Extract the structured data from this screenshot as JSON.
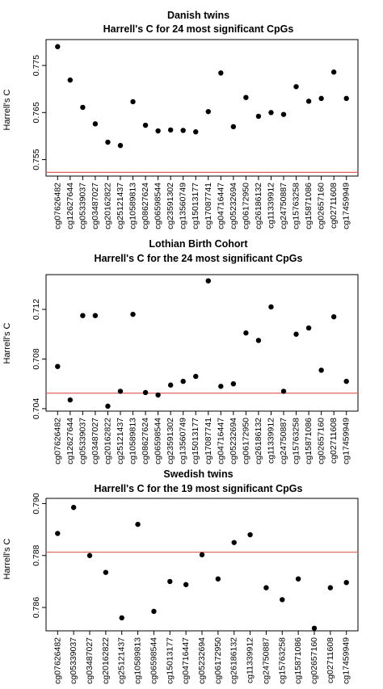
{
  "chart_data": [
    {
      "type": "scatter",
      "title": "Danish twins",
      "subtitle": "Harrell's C for 24 most significant CpGs",
      "ylabel": "Harrell's C",
      "xlabel": "",
      "ylim": [
        0.7515,
        0.7805
      ],
      "yticks": [
        0.755,
        0.765,
        0.775
      ],
      "ytick_labels": [
        "0.755",
        "0.765",
        "0.775"
      ],
      "reference_line": 0.7523,
      "reference_color": "#e0605a",
      "point_color": "#000000",
      "categories": [
        "cg07626482",
        "cg12627644",
        "cg05339037",
        "cg03487027",
        "cg20162822",
        "cg25121437",
        "cg10589813",
        "cg08627624",
        "cg06598544",
        "cg23591302",
        "cg13560749",
        "cg15013177",
        "cg17087741",
        "cg04716447",
        "cg05232694",
        "cg06172950",
        "cg26186132",
        "cg11339912",
        "cg24750887",
        "cg15763258",
        "cg15871086",
        "cg02657160",
        "cg02711608",
        "cg17459949"
      ],
      "values": [
        0.779,
        0.7719,
        0.7661,
        0.7626,
        0.7587,
        0.758,
        0.7673,
        0.7623,
        0.7611,
        0.7613,
        0.7612,
        0.7609,
        0.7652,
        0.7734,
        0.762,
        0.7682,
        0.7642,
        0.765,
        0.7646,
        0.7705,
        0.7674,
        0.768,
        0.7736,
        0.768
      ]
    },
    {
      "type": "scatter",
      "title": "Lothian Birth Cohort",
      "subtitle": "Harrell's C for the 24 most significant CpGs",
      "ylabel": "Harrell's C",
      "xlabel": "",
      "ylim": [
        0.7038,
        0.7148
      ],
      "yticks": [
        0.704,
        0.708,
        0.712
      ],
      "ytick_labels": [
        "0.704",
        "0.708",
        "0.712"
      ],
      "reference_line": 0.70525,
      "reference_color": "#e0605a",
      "point_color": "#000000",
      "categories": [
        "cg07626482",
        "cg12627644",
        "cg05339037",
        "cg03487027",
        "cg20162822",
        "cg25121437",
        "cg10589813",
        "cg08627624",
        "cg06598544",
        "cg23591302",
        "cg13560749",
        "cg15013177",
        "cg17087741",
        "cg04716447",
        "cg05232694",
        "cg06172950",
        "cg26186132",
        "cg11339912",
        "cg24750887",
        "cg15763258",
        "cg15871086",
        "cg02657160",
        "cg02711608",
        "cg17459949"
      ],
      "values": [
        0.7074,
        0.7047,
        0.7115,
        0.7115,
        0.7042,
        0.7054,
        0.7116,
        0.7053,
        0.7051,
        0.7059,
        0.7062,
        0.7066,
        0.7143,
        0.7058,
        0.706,
        0.7101,
        0.7095,
        0.7122,
        0.7054,
        0.71,
        0.7105,
        0.7071,
        0.7114,
        0.7062
      ]
    },
    {
      "type": "scatter",
      "title": "Swedish twins",
      "subtitle": "Harrell's C for the 19 most significant CpGs",
      "ylabel": "Harrell's C",
      "xlabel": "",
      "ylim": [
        0.7851,
        0.7902
      ],
      "yticks": [
        0.786,
        0.788,
        0.79
      ],
      "ytick_labels": [
        "0.786",
        "0.788",
        "0.790"
      ],
      "reference_line": 0.78813,
      "reference_color": "#e0605a",
      "point_color": "#000000",
      "categories": [
        "cg07626482",
        "cg05339037",
        "cg03487027",
        "cg20162822",
        "cg25121437",
        "cg10589813",
        "cg06598544",
        "cg15013177",
        "cg04716447",
        "cg05232694",
        "cg06172950",
        "cg26186132",
        "cg11339912",
        "cg24750887",
        "cg15763258",
        "cg15871086",
        "cg02657160",
        "cg02711608",
        "cg17459949"
      ],
      "values": [
        0.78885,
        0.78985,
        0.788,
        0.78735,
        0.7856,
        0.7892,
        0.78585,
        0.787,
        0.78688,
        0.78803,
        0.7871,
        0.7885,
        0.7888,
        0.78676,
        0.7863,
        0.7871,
        0.7852,
        0.78676,
        0.78696
      ]
    }
  ]
}
